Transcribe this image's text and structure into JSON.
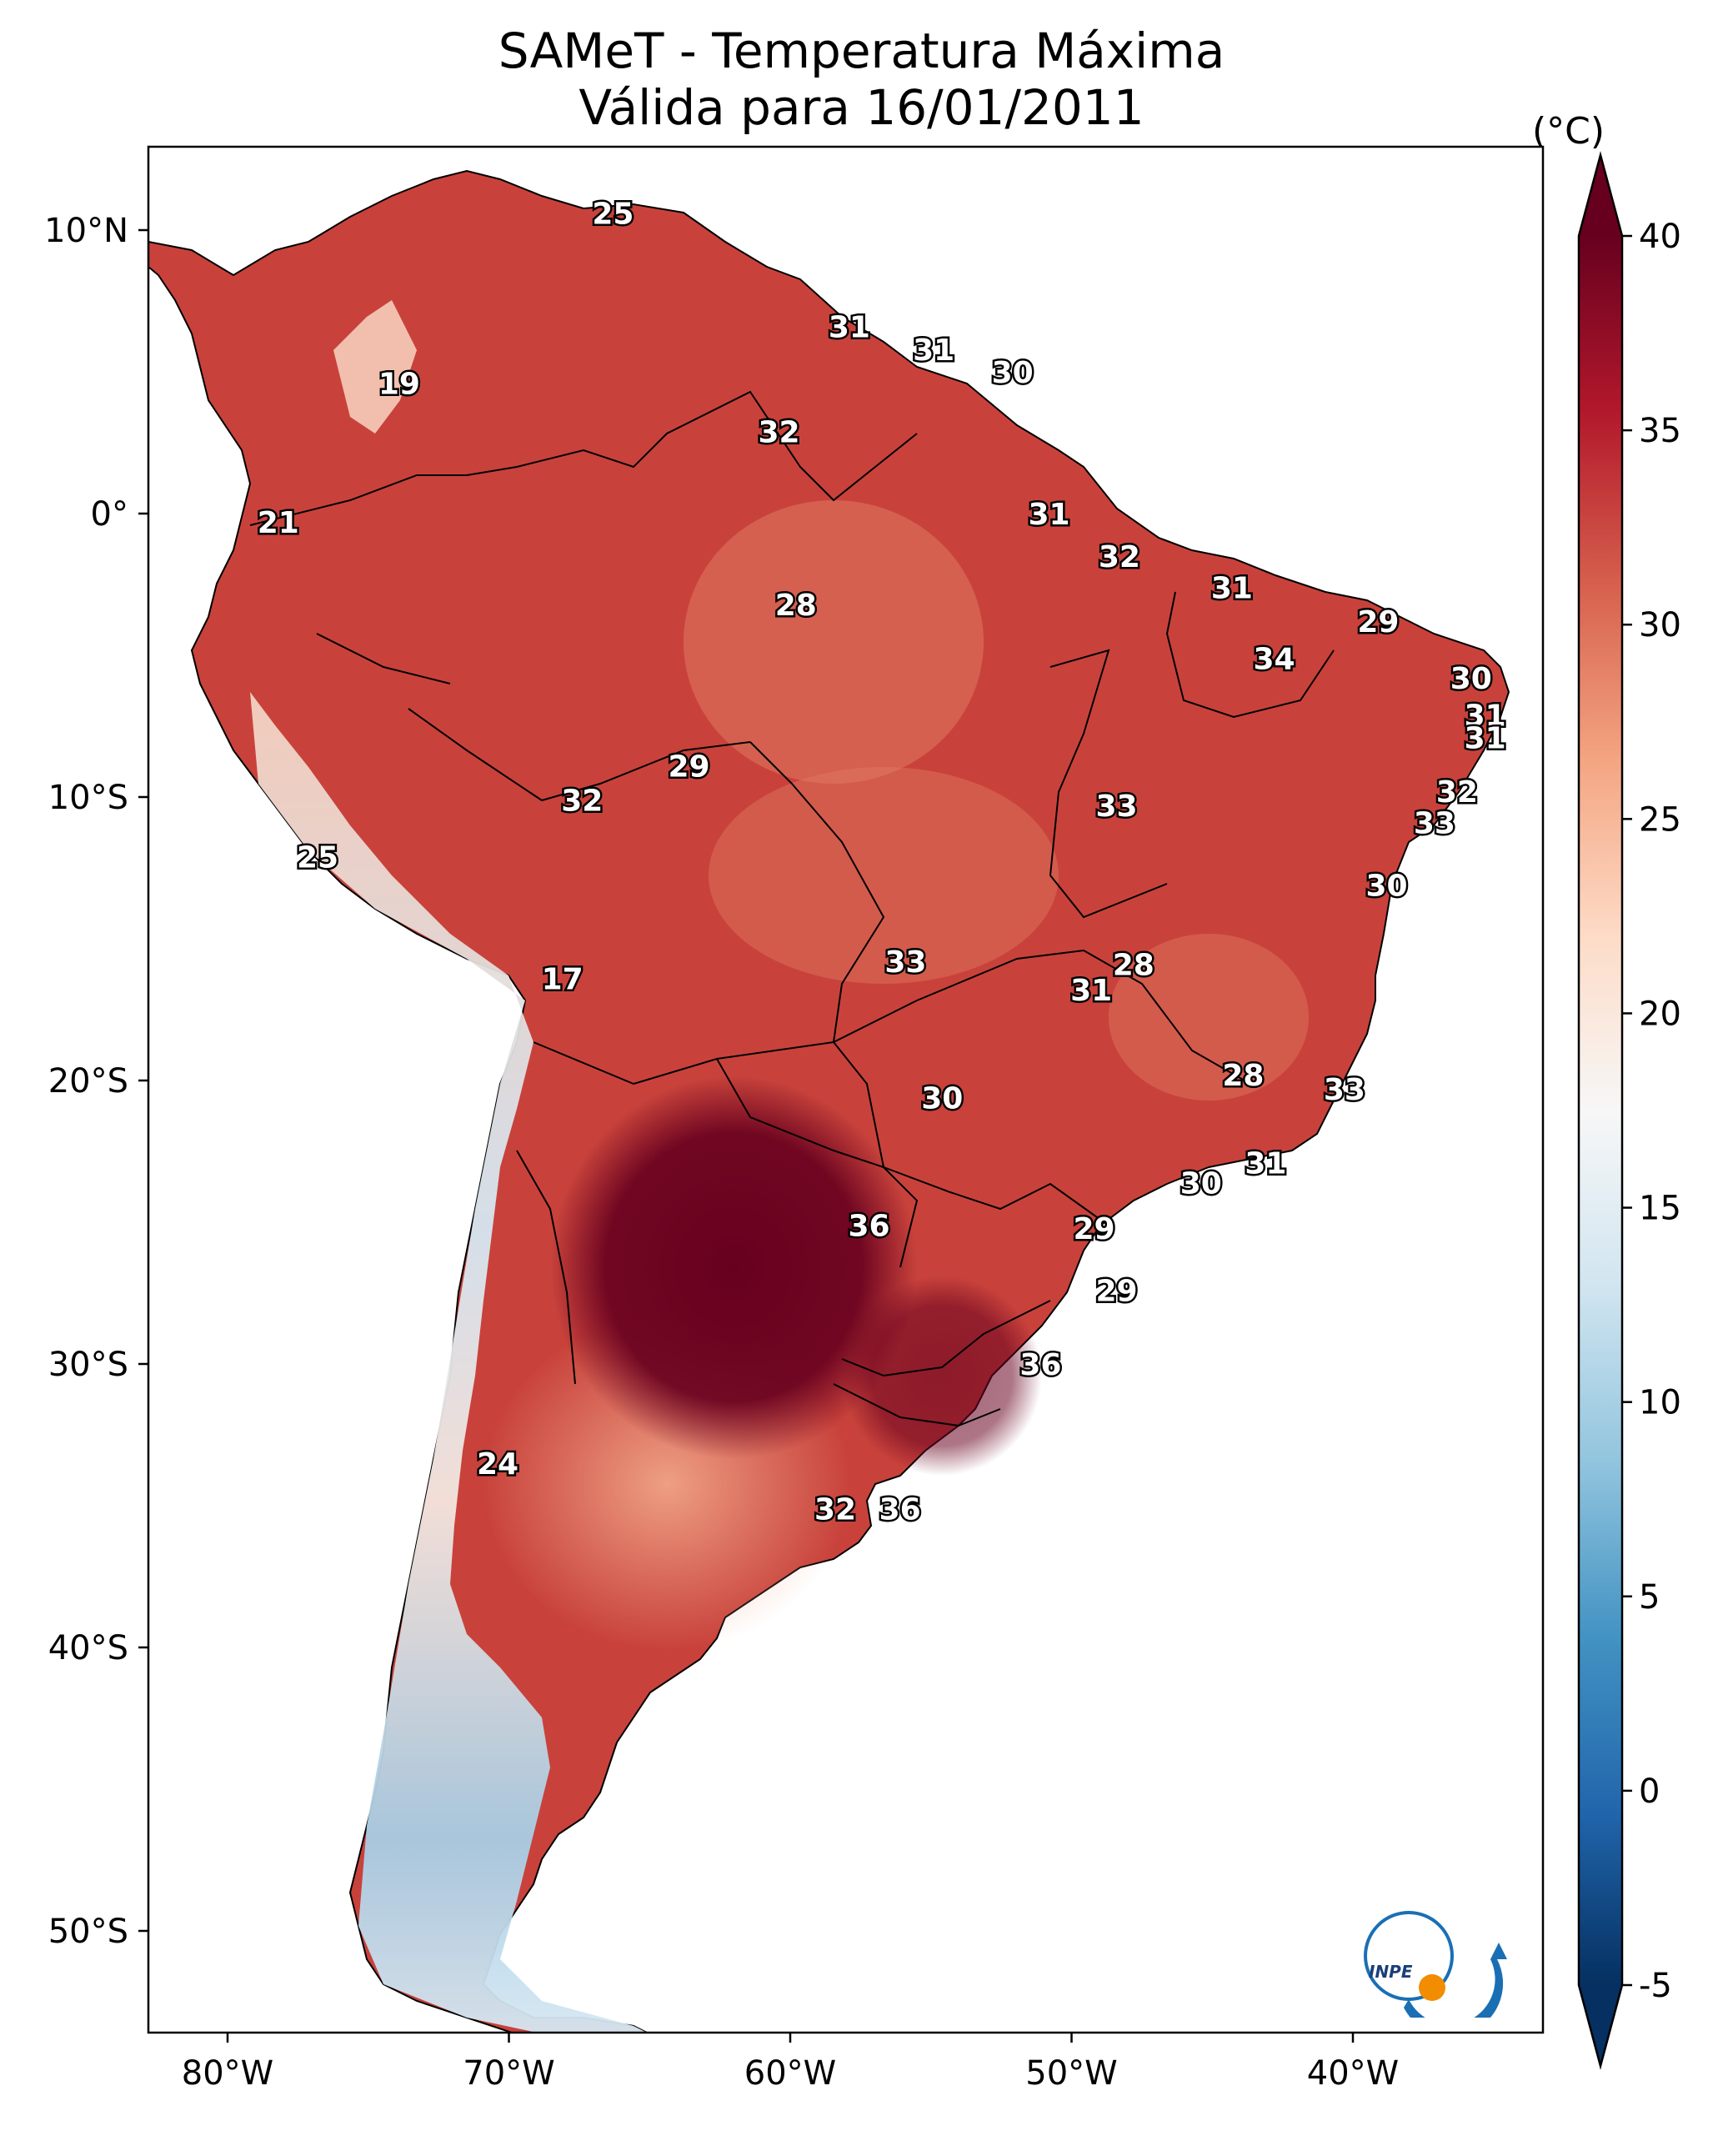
{
  "title": {
    "line1": "SAMeT - Temperatura Máxima",
    "line2": "Válida para 16/01/2011"
  },
  "colorbar": {
    "units": "(°C)",
    "ticks": [
      "40",
      "35",
      "30",
      "25",
      "20",
      "15",
      "10",
      "5",
      "0",
      "-5"
    ],
    "colors": [
      "#053061",
      "#2166ac",
      "#4393c3",
      "#92c5de",
      "#d1e5f0",
      "#f7f7f7",
      "#fddbc7",
      "#f4a582",
      "#d6604d",
      "#b2182b",
      "#67001f"
    ]
  },
  "axes": {
    "lon_labels": [
      "80°W",
      "70°W",
      "60°W",
      "50°W",
      "40°W"
    ],
    "lat_labels": [
      "10°N",
      "0°",
      "10°S",
      "20°S",
      "30°S",
      "40°S",
      "50°S"
    ]
  },
  "contour_labels": [
    {
      "text": "25",
      "lon": -66.3,
      "lat": 10.6
    },
    {
      "text": "19",
      "lon": -73.9,
      "lat": 4.6
    },
    {
      "text": "31",
      "lon": -57.9,
      "lat": 6.6
    },
    {
      "text": "31",
      "lon": -54.9,
      "lat": 5.8
    },
    {
      "text": "30",
      "lon": -52.1,
      "lat": 5.0
    },
    {
      "text": "32",
      "lon": -60.4,
      "lat": 2.9
    },
    {
      "text": "21",
      "lon": -78.2,
      "lat": -0.3
    },
    {
      "text": "31",
      "lon": -50.8,
      "lat": 0.0
    },
    {
      "text": "32",
      "lon": -48.3,
      "lat": -1.5
    },
    {
      "text": "28",
      "lon": -59.8,
      "lat": -3.2
    },
    {
      "text": "31",
      "lon": -44.3,
      "lat": -2.6
    },
    {
      "text": "29",
      "lon": -39.1,
      "lat": -3.8
    },
    {
      "text": "34",
      "lon": -42.8,
      "lat": -5.1
    },
    {
      "text": "30",
      "lon": -35.8,
      "lat": -5.8
    },
    {
      "text": "31",
      "lon": -35.3,
      "lat": -7.1
    },
    {
      "text": "31",
      "lon": -35.3,
      "lat": -7.9
    },
    {
      "text": "29",
      "lon": -63.6,
      "lat": -8.9
    },
    {
      "text": "32",
      "lon": -67.4,
      "lat": -10.1
    },
    {
      "text": "32",
      "lon": -36.3,
      "lat": -9.8
    },
    {
      "text": "33",
      "lon": -48.4,
      "lat": -10.3
    },
    {
      "text": "33",
      "lon": -37.1,
      "lat": -10.9
    },
    {
      "text": "25",
      "lon": -76.8,
      "lat": -12.1
    },
    {
      "text": "30",
      "lon": -38.8,
      "lat": -13.1
    },
    {
      "text": "33",
      "lon": -55.9,
      "lat": -15.8
    },
    {
      "text": "28",
      "lon": -47.8,
      "lat": -15.9
    },
    {
      "text": "17",
      "lon": -68.1,
      "lat": -16.4
    },
    {
      "text": "31",
      "lon": -49.3,
      "lat": -16.8
    },
    {
      "text": "28",
      "lon": -43.9,
      "lat": -19.8
    },
    {
      "text": "33",
      "lon": -40.3,
      "lat": -20.3
    },
    {
      "text": "30",
      "lon": -54.6,
      "lat": -20.6
    },
    {
      "text": "31",
      "lon": -43.1,
      "lat": -22.9
    },
    {
      "text": "30",
      "lon": -45.4,
      "lat": -23.6
    },
    {
      "text": "36",
      "lon": -57.2,
      "lat": -25.1
    },
    {
      "text": "29",
      "lon": -49.2,
      "lat": -25.2
    },
    {
      "text": "29",
      "lon": -48.4,
      "lat": -27.4
    },
    {
      "text": "36",
      "lon": -51.1,
      "lat": -30.0
    },
    {
      "text": "24",
      "lon": -70.4,
      "lat": -33.5
    },
    {
      "text": "32",
      "lon": -58.4,
      "lat": -35.1
    },
    {
      "text": "36",
      "lon": -56.1,
      "lat": -35.1
    }
  ]
}
